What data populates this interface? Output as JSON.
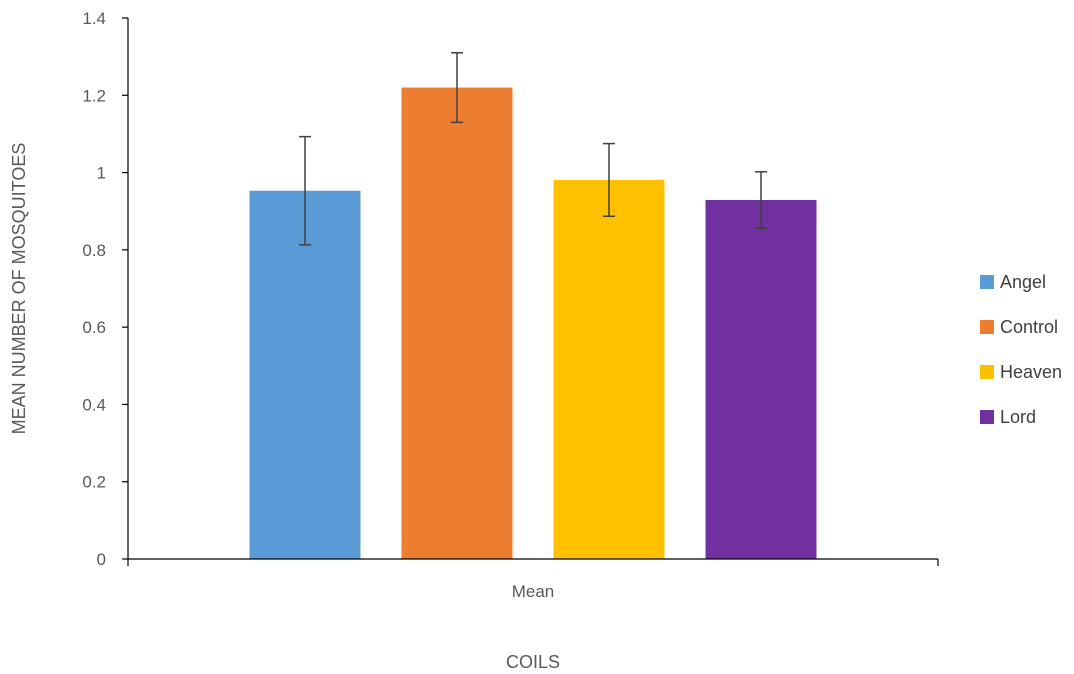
{
  "chart_data": {
    "type": "bar",
    "title": "",
    "categories": [
      "Mean"
    ],
    "series": [
      {
        "name": "Angel",
        "values": [
          0.953
        ],
        "error": [
          0.14
        ],
        "color": "#5B9BD5"
      },
      {
        "name": "Control",
        "values": [
          1.22
        ],
        "error": [
          0.09
        ],
        "color": "#ED7D31"
      },
      {
        "name": "Heaven",
        "values": [
          0.981
        ],
        "error": [
          0.094
        ],
        "color": "#FFC000"
      },
      {
        "name": "Lord",
        "values": [
          0.929
        ],
        "error": [
          0.073
        ],
        "color": "#7030A0"
      }
    ],
    "xlabel": "COILS",
    "ylabel": "MEAN NUMBER OF MOSQUITOES",
    "ylim": [
      0,
      1.4
    ],
    "yticks": [
      "0",
      "0.2",
      "0.4",
      "0.6",
      "0.8",
      "1",
      "1.2",
      "1.4"
    ],
    "grid": false,
    "legend_position": "right"
  }
}
